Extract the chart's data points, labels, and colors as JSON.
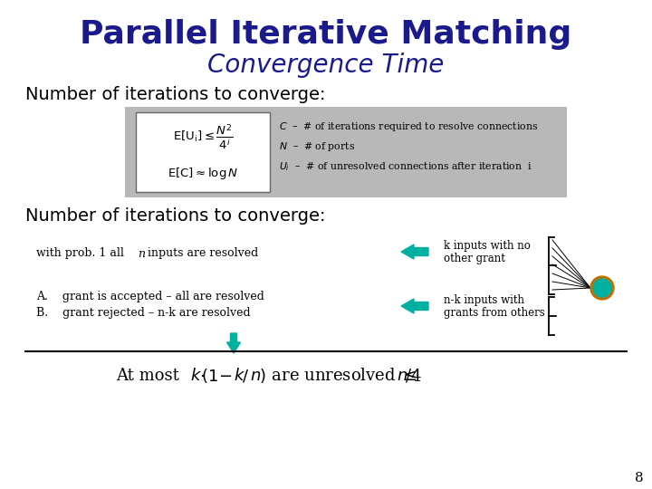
{
  "bg_color": "#ffffff",
  "title1": "Parallel Iterative Matching",
  "title2": "Convergence Time",
  "title_color": "#1a1a8c",
  "title1_fontsize": 26,
  "title2_fontsize": 20,
  "header_fontsize": 14,
  "gray_box_color": "#b8b8b8",
  "section1_header": "Number of iterations to converge:",
  "section2_header": "Number of iterations to converge:",
  "prob_text_plain": "with prob. 1 all ",
  "prob_text_italic": "n",
  "prob_text_end": " inputs are resolved",
  "k_inputs_line1": "k inputs with no",
  "k_inputs_line2": "other grant",
  "nk_inputs_line1": "n-k inputs with",
  "nk_inputs_line2": "grants from others",
  "grant_a": "A.    grant is accepted – all are resolved",
  "grant_b": "B.    grant rejected – n-k are resolved",
  "page_number": "8",
  "arrow_color": "#00b0a0",
  "node_fill": "#00b0a0",
  "node_ring": "#c07000",
  "down_arrow_color": "#00b0a0"
}
